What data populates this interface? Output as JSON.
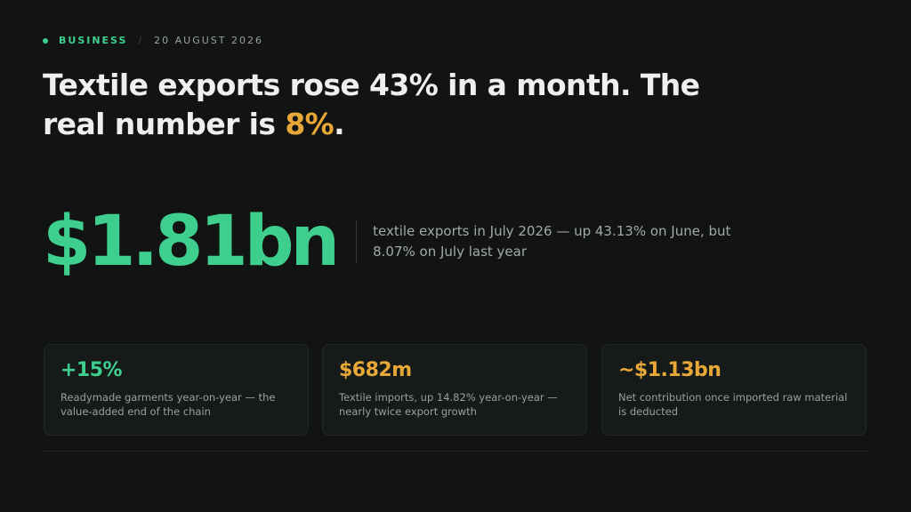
{
  "header": {
    "section": "BUSINESS",
    "separator": "/",
    "date": "20 AUGUST 2026"
  },
  "headline": {
    "line1": "Textile exports rose 43% in a month. The",
    "line2": "real number is",
    "highlight": "8%",
    "end": "."
  },
  "lead": {
    "value": "$1.81bn",
    "description": "textile exports in July 2026 — up 43.13% on June, but 8.07% on July last year"
  },
  "cards": [
    {
      "value": "+15%",
      "description": "Readymade garments year-on-year — the value-added end of the chain"
    },
    {
      "value": "$682m",
      "description": "Textile imports, up 14.82% year-on-year — nearly twice export growth"
    },
    {
      "value": "~$1.13bn",
      "description": "Net contribution once imported raw material is deducted"
    }
  ]
}
